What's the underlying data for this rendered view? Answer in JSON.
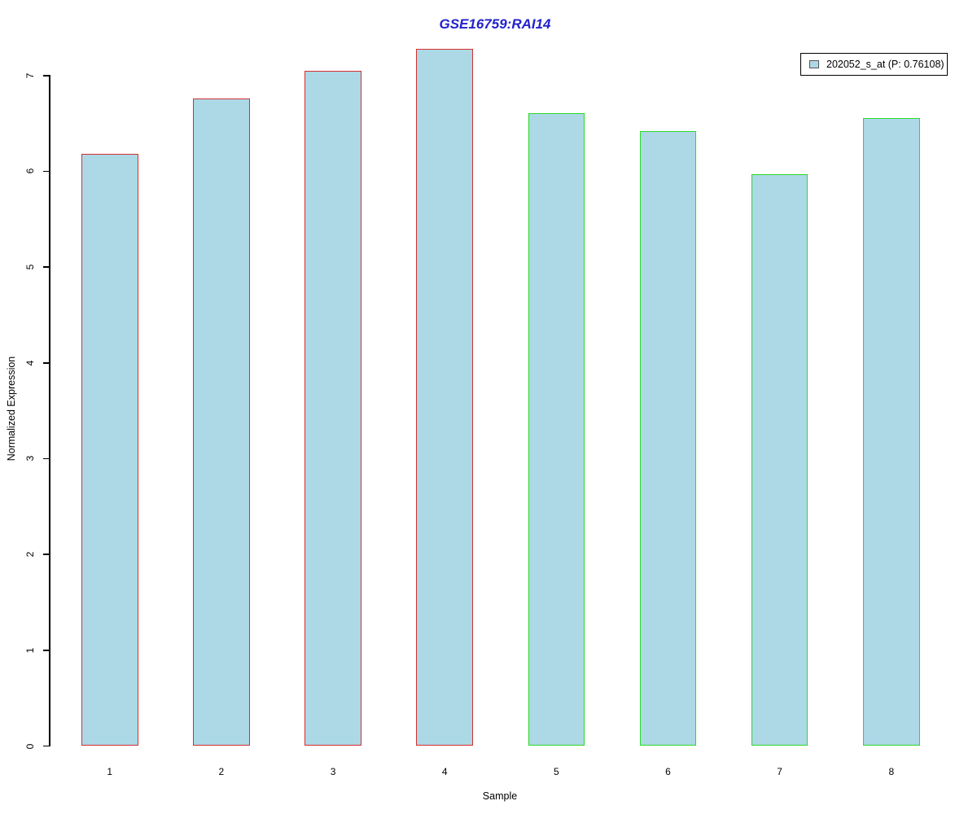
{
  "title": "GSE16759:RAI14",
  "legend": {
    "label": "202052_s_at (P: 0.76108)"
  },
  "colors": {
    "title": "#2222CC",
    "bar_fill": "#ADD8E6",
    "red_edge": "#D43030",
    "green_edge": "#2BD92B",
    "axis": "#000000",
    "legend_border": "#000000",
    "legend_swatch_border": "#555555"
  },
  "chart_data": {
    "type": "bar",
    "title": "GSE16759:RAI14",
    "xlabel": "Sample",
    "ylabel": "Normalized Expression",
    "categories": [
      "1",
      "2",
      "3",
      "4",
      "5",
      "6",
      "7",
      "8"
    ],
    "values": [
      6.18,
      6.76,
      7.05,
      7.28,
      6.61,
      6.42,
      5.97,
      6.56
    ],
    "bar_fill": "#ADD8E6",
    "bar_edge_colors": [
      "#D43030",
      "#D43030",
      "#D43030",
      "#D43030",
      "#2BD92B",
      "#2BD92B",
      "#2BD92B",
      "#2BD92B"
    ],
    "yticks": [
      0,
      1,
      2,
      3,
      4,
      5,
      6,
      7
    ],
    "ylim": [
      0,
      7.3
    ],
    "grid": false,
    "legend": {
      "label": "202052_s_at (P: 0.76108)",
      "position": "top-right"
    }
  }
}
